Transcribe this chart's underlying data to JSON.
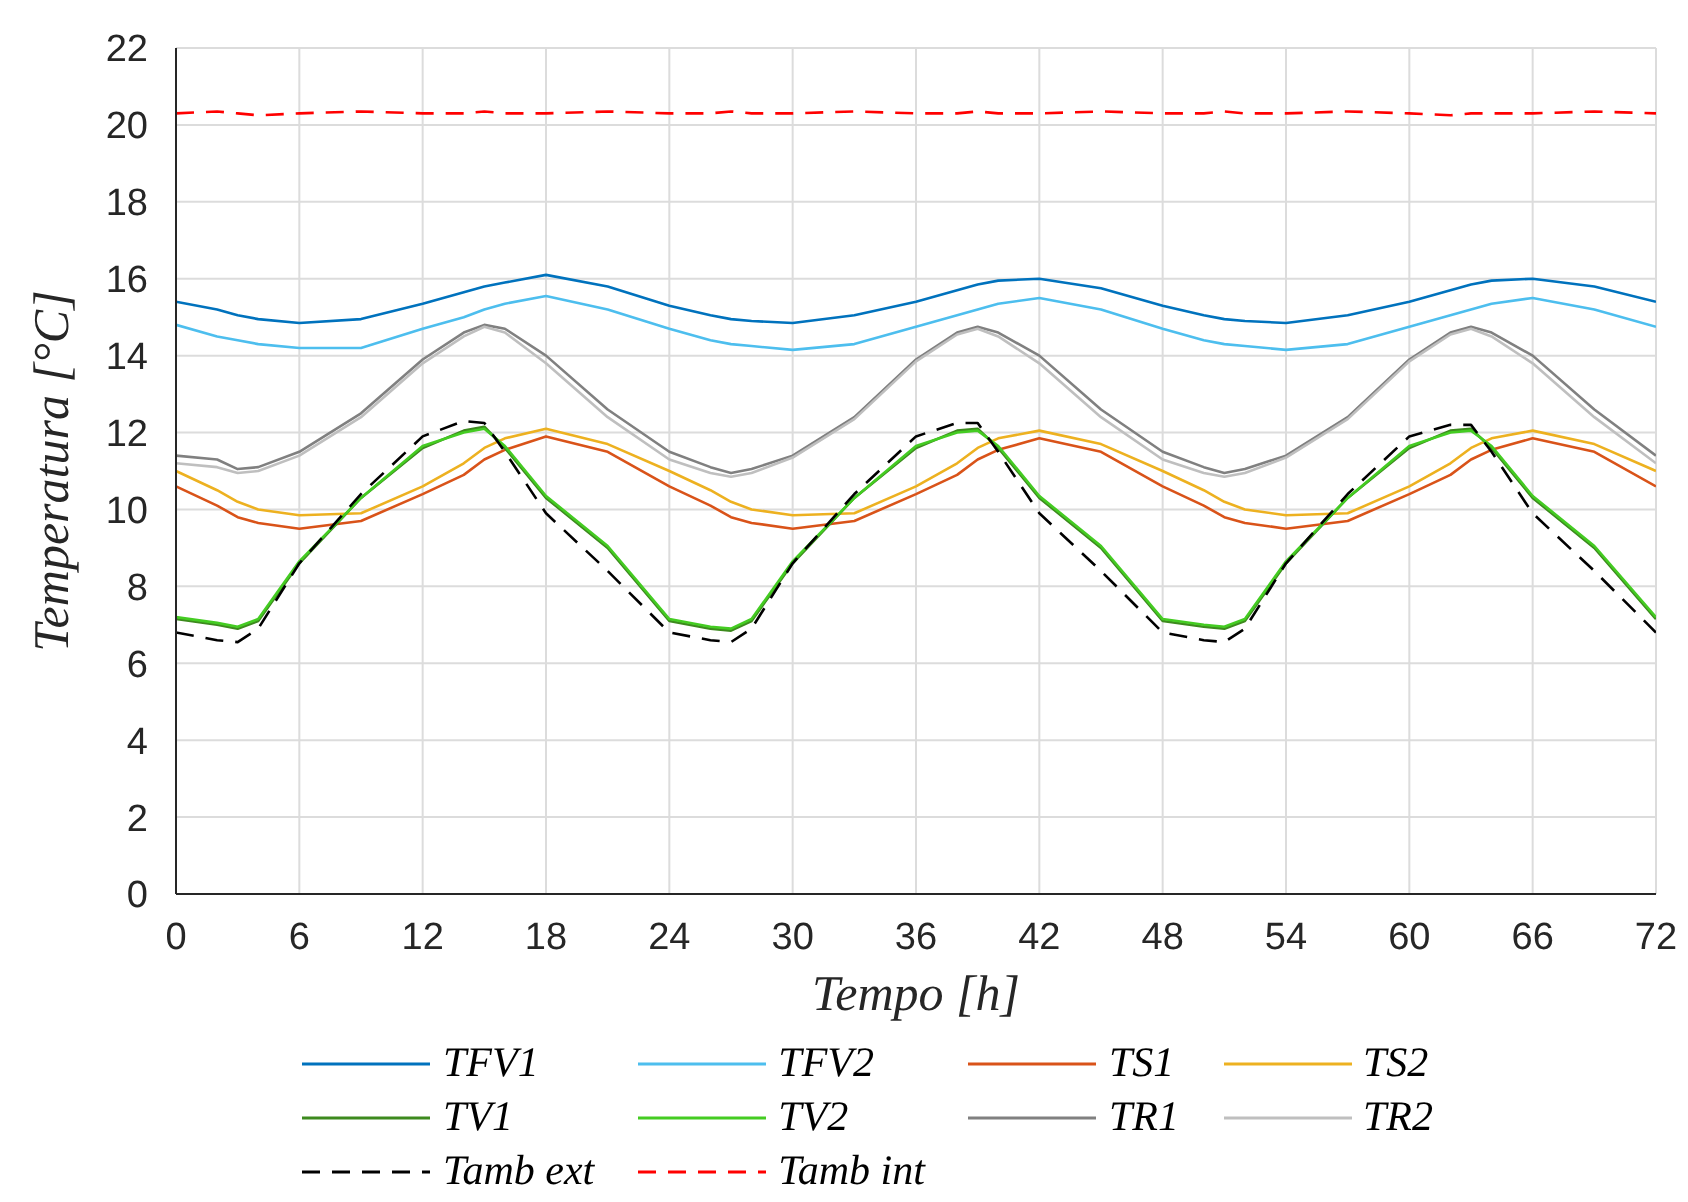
{
  "chart_data": {
    "type": "line",
    "xlabel": "Tempo [h]",
    "ylabel": "Temperatura [°C]",
    "x": [
      0,
      2,
      3,
      4,
      6,
      9,
      12,
      14,
      15,
      16,
      18,
      21,
      24,
      26,
      27,
      28,
      30,
      33,
      36,
      38,
      39,
      40,
      42,
      45,
      48,
      50,
      51,
      52,
      54,
      57,
      60,
      62,
      63,
      64,
      66,
      69,
      72
    ],
    "series": [
      {
        "name": "TFV1",
        "color": "#0072bd",
        "values": [
          15.4,
          15.2,
          15.05,
          14.95,
          14.85,
          14.95,
          15.35,
          15.65,
          15.8,
          15.9,
          16.1,
          15.8,
          15.3,
          15.05,
          14.95,
          14.9,
          14.85,
          15.05,
          15.4,
          15.7,
          15.85,
          15.95,
          16.0,
          15.75,
          15.3,
          15.05,
          14.95,
          14.9,
          14.85,
          15.05,
          15.4,
          15.7,
          15.85,
          15.95,
          16.0,
          15.8,
          15.4
        ]
      },
      {
        "name": "TFV2",
        "color": "#4dbeee",
        "values": [
          14.8,
          14.5,
          14.4,
          14.3,
          14.2,
          14.2,
          14.7,
          15.0,
          15.2,
          15.35,
          15.55,
          15.2,
          14.7,
          14.4,
          14.3,
          14.25,
          14.15,
          14.3,
          14.75,
          15.05,
          15.2,
          15.35,
          15.5,
          15.2,
          14.7,
          14.4,
          14.3,
          14.25,
          14.15,
          14.3,
          14.75,
          15.05,
          15.2,
          15.35,
          15.5,
          15.2,
          14.75
        ]
      },
      {
        "name": "TS1",
        "color": "#d95319",
        "values": [
          10.6,
          10.1,
          9.8,
          9.65,
          9.5,
          9.7,
          10.4,
          10.9,
          11.3,
          11.55,
          11.9,
          11.5,
          10.6,
          10.1,
          9.8,
          9.65,
          9.5,
          9.7,
          10.4,
          10.9,
          11.3,
          11.55,
          11.85,
          11.5,
          10.6,
          10.1,
          9.8,
          9.65,
          9.5,
          9.7,
          10.4,
          10.9,
          11.3,
          11.55,
          11.85,
          11.5,
          10.6
        ]
      },
      {
        "name": "TS2",
        "color": "#edb120",
        "values": [
          11.0,
          10.5,
          10.2,
          10.0,
          9.85,
          9.9,
          10.6,
          11.2,
          11.6,
          11.85,
          12.1,
          11.7,
          11.0,
          10.5,
          10.2,
          10.0,
          9.85,
          9.9,
          10.6,
          11.2,
          11.6,
          11.85,
          12.05,
          11.7,
          11.0,
          10.5,
          10.2,
          10.0,
          9.85,
          9.9,
          10.6,
          11.2,
          11.6,
          11.85,
          12.05,
          11.7,
          11.0
        ]
      },
      {
        "name": "TV1",
        "color": "#3d8a1e",
        "values": [
          7.15,
          7.0,
          6.9,
          7.1,
          8.6,
          10.3,
          11.6,
          12.05,
          12.15,
          11.6,
          10.3,
          9.0,
          7.1,
          6.9,
          6.85,
          7.1,
          8.6,
          10.3,
          11.6,
          12.05,
          12.1,
          11.6,
          10.3,
          9.0,
          7.1,
          6.95,
          6.9,
          7.1,
          8.6,
          10.3,
          11.6,
          12.05,
          12.1,
          11.6,
          10.3,
          9.0,
          7.15
        ]
      },
      {
        "name": "TV2",
        "color": "#44cc22",
        "values": [
          7.2,
          7.05,
          6.95,
          7.15,
          8.65,
          10.3,
          11.65,
          12.0,
          12.1,
          11.65,
          10.35,
          9.05,
          7.15,
          6.95,
          6.9,
          7.15,
          8.65,
          10.3,
          11.65,
          12.0,
          12.05,
          11.65,
          10.35,
          9.05,
          7.15,
          7.0,
          6.95,
          7.15,
          8.65,
          10.3,
          11.65,
          12.0,
          12.05,
          11.65,
          10.35,
          9.05,
          7.2
        ]
      },
      {
        "name": "TR1",
        "color": "#808080",
        "values": [
          11.4,
          11.3,
          11.05,
          11.1,
          11.5,
          12.5,
          13.9,
          14.6,
          14.8,
          14.7,
          14.0,
          12.6,
          11.5,
          11.1,
          10.95,
          11.05,
          11.4,
          12.4,
          13.9,
          14.6,
          14.75,
          14.6,
          14.0,
          12.6,
          11.5,
          11.1,
          10.95,
          11.05,
          11.4,
          12.4,
          13.9,
          14.6,
          14.75,
          14.6,
          14.0,
          12.6,
          11.4
        ]
      },
      {
        "name": "TR2",
        "color": "#bfbfbf",
        "values": [
          11.2,
          11.1,
          10.95,
          11.0,
          11.4,
          12.4,
          13.8,
          14.5,
          14.75,
          14.6,
          13.8,
          12.4,
          11.3,
          10.95,
          10.85,
          10.95,
          11.35,
          12.35,
          13.85,
          14.55,
          14.7,
          14.5,
          13.8,
          12.4,
          11.3,
          10.95,
          10.85,
          10.95,
          11.35,
          12.35,
          13.85,
          14.55,
          14.7,
          14.5,
          13.8,
          12.4,
          11.2
        ]
      },
      {
        "name": "Tamb ext",
        "color": "#000000",
        "line_style": "dashed",
        "values": [
          6.8,
          6.6,
          6.55,
          6.9,
          8.6,
          10.4,
          11.9,
          12.3,
          12.25,
          11.5,
          9.9,
          8.4,
          6.8,
          6.6,
          6.55,
          6.9,
          8.6,
          10.4,
          11.9,
          12.25,
          12.25,
          11.5,
          9.9,
          8.4,
          6.8,
          6.6,
          6.55,
          6.9,
          8.6,
          10.4,
          11.9,
          12.2,
          12.2,
          11.5,
          9.9,
          8.4,
          6.8
        ]
      },
      {
        "name": "Tamb int",
        "color": "#ff0000",
        "line_style": "dashed",
        "values": [
          20.3,
          20.35,
          20.3,
          20.25,
          20.3,
          20.35,
          20.3,
          20.3,
          20.35,
          20.3,
          20.3,
          20.35,
          20.3,
          20.3,
          20.35,
          20.3,
          20.3,
          20.35,
          20.3,
          20.3,
          20.35,
          20.3,
          20.3,
          20.35,
          20.3,
          20.3,
          20.35,
          20.3,
          20.3,
          20.35,
          20.3,
          20.25,
          20.3,
          20.3,
          20.3,
          20.35,
          20.3
        ]
      }
    ],
    "xlim": [
      0,
      72
    ],
    "ylim": [
      0,
      22
    ],
    "xticks": [
      0,
      6,
      12,
      18,
      24,
      30,
      36,
      42,
      48,
      54,
      60,
      66,
      72
    ],
    "yticks": [
      0,
      2,
      4,
      6,
      8,
      10,
      12,
      14,
      16,
      18,
      20,
      22
    ],
    "grid": true,
    "legend": "bottom"
  }
}
